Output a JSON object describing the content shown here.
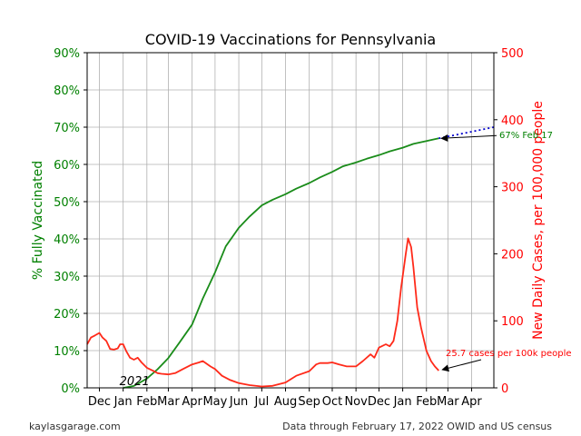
{
  "chart_data": {
    "type": "line",
    "title": "COVID-19 Vaccinations for Pennsylvania",
    "left_axis": {
      "label": "% Fully Vaccinated",
      "color": "#008000",
      "range": [
        0,
        90
      ],
      "ticks": [
        0,
        10,
        20,
        30,
        40,
        50,
        60,
        70,
        80,
        90
      ],
      "tick_labels": [
        "0%",
        "10%",
        "20%",
        "30%",
        "40%",
        "50%",
        "60%",
        "70%",
        "80%",
        "90%"
      ]
    },
    "right_axis": {
      "label": "New Daily Cases, per 100,000 people",
      "color": "#ff0000",
      "range": [
        0,
        500
      ],
      "ticks": [
        0,
        100,
        200,
        300,
        400,
        500
      ],
      "tick_labels": [
        "0",
        "100",
        "200",
        "300",
        "400",
        "500"
      ]
    },
    "x_axis": {
      "range": [
        "2020-11-15",
        "2022-04-30"
      ],
      "month_ticks": [
        "2020-12-01",
        "2021-01-01",
        "2021-02-01",
        "2021-03-01",
        "2021-04-01",
        "2021-05-01",
        "2021-06-01",
        "2021-07-01",
        "2021-08-01",
        "2021-09-01",
        "2021-10-01",
        "2021-11-01",
        "2021-12-01",
        "2022-01-01",
        "2022-02-01",
        "2022-03-01",
        "2022-04-01"
      ],
      "month_labels": [
        "Dec",
        "Jan",
        "Feb",
        "Mar",
        "Apr",
        "May",
        "Jun",
        "Jul",
        "Aug",
        "Sep",
        "Oct",
        "Nov",
        "Dec",
        "Jan",
        "Feb",
        "Mar",
        "Apr"
      ],
      "year_label": "2021",
      "year_label_date": "2021-01-01"
    },
    "grid": true,
    "series": [
      {
        "axis": "left",
        "color": "#1a8c1a",
        "points": [
          [
            "2021-01-01",
            0
          ],
          [
            "2021-01-15",
            0.5
          ],
          [
            "2021-02-01",
            2.5
          ],
          [
            "2021-02-15",
            5
          ],
          [
            "2021-03-01",
            8
          ],
          [
            "2021-03-15",
            12
          ],
          [
            "2021-04-01",
            17
          ],
          [
            "2021-04-05",
            19
          ],
          [
            "2021-04-15",
            24
          ],
          [
            "2021-05-01",
            31
          ],
          [
            "2021-05-15",
            38
          ],
          [
            "2021-06-01",
            43
          ],
          [
            "2021-06-15",
            46
          ],
          [
            "2021-07-01",
            49
          ],
          [
            "2021-07-15",
            50.5
          ],
          [
            "2021-08-01",
            52
          ],
          [
            "2021-08-15",
            53.5
          ],
          [
            "2021-09-01",
            55
          ],
          [
            "2021-09-15",
            56.5
          ],
          [
            "2021-10-01",
            58
          ],
          [
            "2021-10-15",
            59.5
          ],
          [
            "2021-11-01",
            60.5
          ],
          [
            "2021-11-15",
            61.5
          ],
          [
            "2021-12-01",
            62.5
          ],
          [
            "2021-12-15",
            63.5
          ],
          [
            "2022-01-01",
            64.5
          ],
          [
            "2022-01-15",
            65.5
          ],
          [
            "2022-02-01",
            66.3
          ],
          [
            "2022-02-17",
            67
          ]
        ]
      },
      {
        "axis": "left",
        "color": "#0000cc",
        "style": "dotted",
        "points": [
          [
            "2022-02-17",
            67
          ],
          [
            "2022-04-30",
            70
          ]
        ]
      },
      {
        "axis": "right",
        "color": "#ff2a1a",
        "points": [
          [
            "2020-11-15",
            65
          ],
          [
            "2020-11-20",
            75
          ],
          [
            "2020-11-25",
            78
          ],
          [
            "2020-12-01",
            82
          ],
          [
            "2020-12-05",
            75
          ],
          [
            "2020-12-10",
            70
          ],
          [
            "2020-12-15",
            58
          ],
          [
            "2020-12-20",
            57
          ],
          [
            "2020-12-25",
            59
          ],
          [
            "2020-12-28",
            65
          ],
          [
            "2021-01-01",
            65
          ],
          [
            "2021-01-05",
            55
          ],
          [
            "2021-01-10",
            45
          ],
          [
            "2021-01-15",
            42
          ],
          [
            "2021-01-20",
            45
          ],
          [
            "2021-01-25",
            38
          ],
          [
            "2021-02-01",
            30
          ],
          [
            "2021-02-10",
            25
          ],
          [
            "2021-02-15",
            22
          ],
          [
            "2021-02-20",
            21
          ],
          [
            "2021-03-01",
            20
          ],
          [
            "2021-03-10",
            22
          ],
          [
            "2021-03-20",
            28
          ],
          [
            "2021-04-01",
            35
          ],
          [
            "2021-04-10",
            38
          ],
          [
            "2021-04-15",
            40
          ],
          [
            "2021-04-25",
            32
          ],
          [
            "2021-05-01",
            28
          ],
          [
            "2021-05-10",
            18
          ],
          [
            "2021-05-20",
            12
          ],
          [
            "2021-06-01",
            7
          ],
          [
            "2021-06-15",
            4
          ],
          [
            "2021-07-01",
            2
          ],
          [
            "2021-07-15",
            3
          ],
          [
            "2021-08-01",
            8
          ],
          [
            "2021-08-15",
            18
          ],
          [
            "2021-09-01",
            25
          ],
          [
            "2021-09-10",
            35
          ],
          [
            "2021-09-15",
            37
          ],
          [
            "2021-09-25",
            37
          ],
          [
            "2021-10-01",
            38
          ],
          [
            "2021-10-10",
            35
          ],
          [
            "2021-10-20",
            32
          ],
          [
            "2021-11-01",
            32
          ],
          [
            "2021-11-10",
            40
          ],
          [
            "2021-11-20",
            50
          ],
          [
            "2021-11-25",
            45
          ],
          [
            "2021-12-01",
            60
          ],
          [
            "2021-12-10",
            65
          ],
          [
            "2021-12-15",
            62
          ],
          [
            "2021-12-20",
            70
          ],
          [
            "2021-12-25",
            100
          ],
          [
            "2021-12-30",
            150
          ],
          [
            "2022-01-05",
            200
          ],
          [
            "2022-01-08",
            223
          ],
          [
            "2022-01-12",
            210
          ],
          [
            "2022-01-15",
            180
          ],
          [
            "2022-01-20",
            120
          ],
          [
            "2022-01-25",
            90
          ],
          [
            "2022-02-01",
            55
          ],
          [
            "2022-02-07",
            40
          ],
          [
            "2022-02-12",
            32
          ],
          [
            "2022-02-17",
            25.7
          ]
        ]
      }
    ],
    "annotations": [
      {
        "text": "67% Feb 17",
        "color": "#008000",
        "arrow_to_date": "2022-02-17",
        "arrow_to_value": 67,
        "axis": "left"
      },
      {
        "text": "25.7 cases per 100k people",
        "color": "#ff0000",
        "arrow_to_date": "2022-02-17",
        "arrow_to_value": 25.7,
        "axis": "right"
      }
    ]
  },
  "footer": {
    "left": "kaylasgarage.com",
    "right": "Data through February 17, 2022 OWID and US census"
  }
}
